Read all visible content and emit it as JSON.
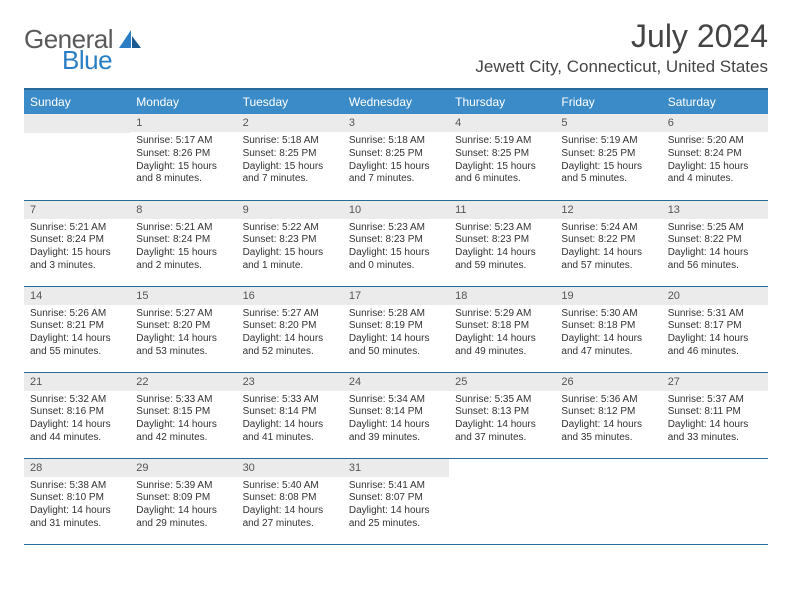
{
  "logo": {
    "text1": "General",
    "text2": "Blue"
  },
  "title": "July 2024",
  "location": "Jewett City, Connecticut, United States",
  "columns": [
    "Sunday",
    "Monday",
    "Tuesday",
    "Wednesday",
    "Thursday",
    "Friday",
    "Saturday"
  ],
  "header_bg": "#3b8bc8",
  "header_border": "#2a6a9a",
  "daynum_bg": "#ebebeb",
  "text_color": "#333333",
  "font_size_body": 10,
  "font_size_header": 12,
  "title_fontsize": 32,
  "location_fontsize": 17,
  "weeks": [
    [
      null,
      {
        "n": "1",
        "sr": "5:17 AM",
        "ss": "8:26 PM",
        "dl": "15 hours and 8 minutes."
      },
      {
        "n": "2",
        "sr": "5:18 AM",
        "ss": "8:25 PM",
        "dl": "15 hours and 7 minutes."
      },
      {
        "n": "3",
        "sr": "5:18 AM",
        "ss": "8:25 PM",
        "dl": "15 hours and 7 minutes."
      },
      {
        "n": "4",
        "sr": "5:19 AM",
        "ss": "8:25 PM",
        "dl": "15 hours and 6 minutes."
      },
      {
        "n": "5",
        "sr": "5:19 AM",
        "ss": "8:25 PM",
        "dl": "15 hours and 5 minutes."
      },
      {
        "n": "6",
        "sr": "5:20 AM",
        "ss": "8:24 PM",
        "dl": "15 hours and 4 minutes."
      }
    ],
    [
      {
        "n": "7",
        "sr": "5:21 AM",
        "ss": "8:24 PM",
        "dl": "15 hours and 3 minutes."
      },
      {
        "n": "8",
        "sr": "5:21 AM",
        "ss": "8:24 PM",
        "dl": "15 hours and 2 minutes."
      },
      {
        "n": "9",
        "sr": "5:22 AM",
        "ss": "8:23 PM",
        "dl": "15 hours and 1 minute."
      },
      {
        "n": "10",
        "sr": "5:23 AM",
        "ss": "8:23 PM",
        "dl": "15 hours and 0 minutes."
      },
      {
        "n": "11",
        "sr": "5:23 AM",
        "ss": "8:23 PM",
        "dl": "14 hours and 59 minutes."
      },
      {
        "n": "12",
        "sr": "5:24 AM",
        "ss": "8:22 PM",
        "dl": "14 hours and 57 minutes."
      },
      {
        "n": "13",
        "sr": "5:25 AM",
        "ss": "8:22 PM",
        "dl": "14 hours and 56 minutes."
      }
    ],
    [
      {
        "n": "14",
        "sr": "5:26 AM",
        "ss": "8:21 PM",
        "dl": "14 hours and 55 minutes."
      },
      {
        "n": "15",
        "sr": "5:27 AM",
        "ss": "8:20 PM",
        "dl": "14 hours and 53 minutes."
      },
      {
        "n": "16",
        "sr": "5:27 AM",
        "ss": "8:20 PM",
        "dl": "14 hours and 52 minutes."
      },
      {
        "n": "17",
        "sr": "5:28 AM",
        "ss": "8:19 PM",
        "dl": "14 hours and 50 minutes."
      },
      {
        "n": "18",
        "sr": "5:29 AM",
        "ss": "8:18 PM",
        "dl": "14 hours and 49 minutes."
      },
      {
        "n": "19",
        "sr": "5:30 AM",
        "ss": "8:18 PM",
        "dl": "14 hours and 47 minutes."
      },
      {
        "n": "20",
        "sr": "5:31 AM",
        "ss": "8:17 PM",
        "dl": "14 hours and 46 minutes."
      }
    ],
    [
      {
        "n": "21",
        "sr": "5:32 AM",
        "ss": "8:16 PM",
        "dl": "14 hours and 44 minutes."
      },
      {
        "n": "22",
        "sr": "5:33 AM",
        "ss": "8:15 PM",
        "dl": "14 hours and 42 minutes."
      },
      {
        "n": "23",
        "sr": "5:33 AM",
        "ss": "8:14 PM",
        "dl": "14 hours and 41 minutes."
      },
      {
        "n": "24",
        "sr": "5:34 AM",
        "ss": "8:14 PM",
        "dl": "14 hours and 39 minutes."
      },
      {
        "n": "25",
        "sr": "5:35 AM",
        "ss": "8:13 PM",
        "dl": "14 hours and 37 minutes."
      },
      {
        "n": "26",
        "sr": "5:36 AM",
        "ss": "8:12 PM",
        "dl": "14 hours and 35 minutes."
      },
      {
        "n": "27",
        "sr": "5:37 AM",
        "ss": "8:11 PM",
        "dl": "14 hours and 33 minutes."
      }
    ],
    [
      {
        "n": "28",
        "sr": "5:38 AM",
        "ss": "8:10 PM",
        "dl": "14 hours and 31 minutes."
      },
      {
        "n": "29",
        "sr": "5:39 AM",
        "ss": "8:09 PM",
        "dl": "14 hours and 29 minutes."
      },
      {
        "n": "30",
        "sr": "5:40 AM",
        "ss": "8:08 PM",
        "dl": "14 hours and 27 minutes."
      },
      {
        "n": "31",
        "sr": "5:41 AM",
        "ss": "8:07 PM",
        "dl": "14 hours and 25 minutes."
      },
      null,
      null,
      null
    ]
  ],
  "labels": {
    "sunrise": "Sunrise:",
    "sunset": "Sunset:",
    "daylight": "Daylight:"
  }
}
